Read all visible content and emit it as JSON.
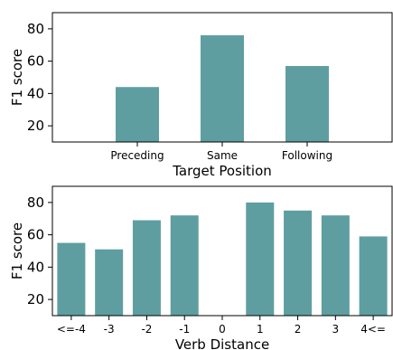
{
  "chart_data": [
    {
      "type": "bar",
      "categories": [
        "Preceding",
        "Same",
        "Following"
      ],
      "x": [
        1,
        2,
        3
      ],
      "values": [
        44,
        76,
        57
      ],
      "xlim": [
        0,
        4
      ],
      "xlabel": "Target Position",
      "ylabel": "F1 score",
      "ylim": [
        10,
        90
      ],
      "yticks": [
        20,
        40,
        60,
        80
      ],
      "grid": false,
      "color": "#5f9ea0"
    },
    {
      "type": "bar",
      "categories": [
        "<=-4",
        "-3",
        "-2",
        "-1",
        "0",
        "1",
        "2",
        "3",
        "4<="
      ],
      "values": [
        55,
        51,
        69,
        72,
        null,
        80,
        75,
        72,
        59
      ],
      "xlabel": "Verb Distance",
      "ylabel": "F1 score",
      "ylim": [
        10,
        90
      ],
      "yticks": [
        20,
        40,
        60,
        80
      ],
      "grid": false,
      "color": "#5f9ea0"
    }
  ]
}
